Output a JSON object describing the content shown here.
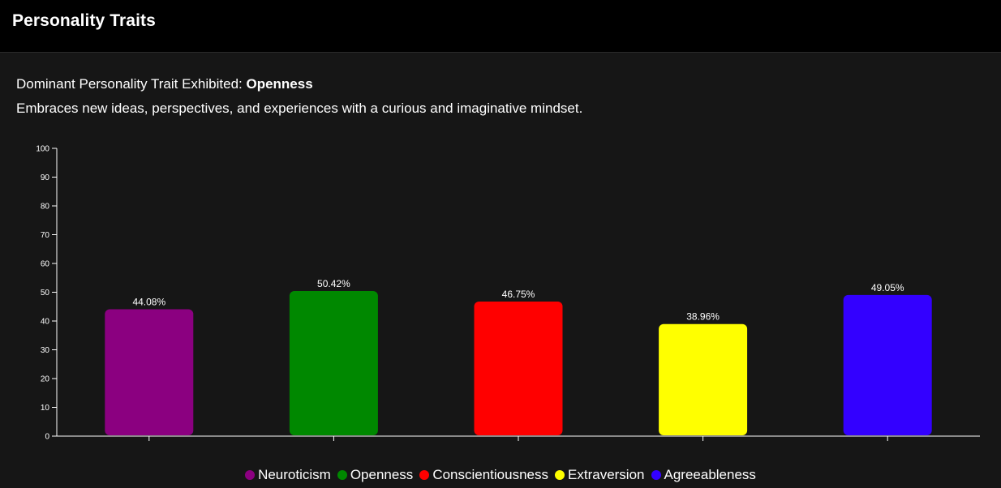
{
  "header": {
    "title": "Personality Traits"
  },
  "summary": {
    "dominant_label": "Dominant Personality Trait Exhibited: ",
    "dominant_value": "Openness",
    "description": "Embraces new ideas, perspectives, and experiences with a curious and imaginative mindset."
  },
  "chart_data": {
    "type": "bar",
    "categories": [
      "Neuroticism",
      "Openness",
      "Conscientiousness",
      "Extraversion",
      "Agreeableness"
    ],
    "values": [
      44.08,
      50.42,
      46.75,
      38.96,
      49.05
    ],
    "data_labels": [
      "44.08%",
      "50.42%",
      "46.75%",
      "38.96%",
      "49.05%"
    ],
    "colors": [
      "#8b0080",
      "#008800",
      "#ff0000",
      "#ffff00",
      "#3300ff"
    ],
    "ylim": [
      0,
      100
    ],
    "yticks": [
      "0",
      "10",
      "20",
      "30",
      "40",
      "50",
      "60",
      "70",
      "80",
      "90",
      "100"
    ],
    "grid": false,
    "legend_position": "bottom-center",
    "title": "",
    "xlabel": "",
    "ylabel": ""
  }
}
